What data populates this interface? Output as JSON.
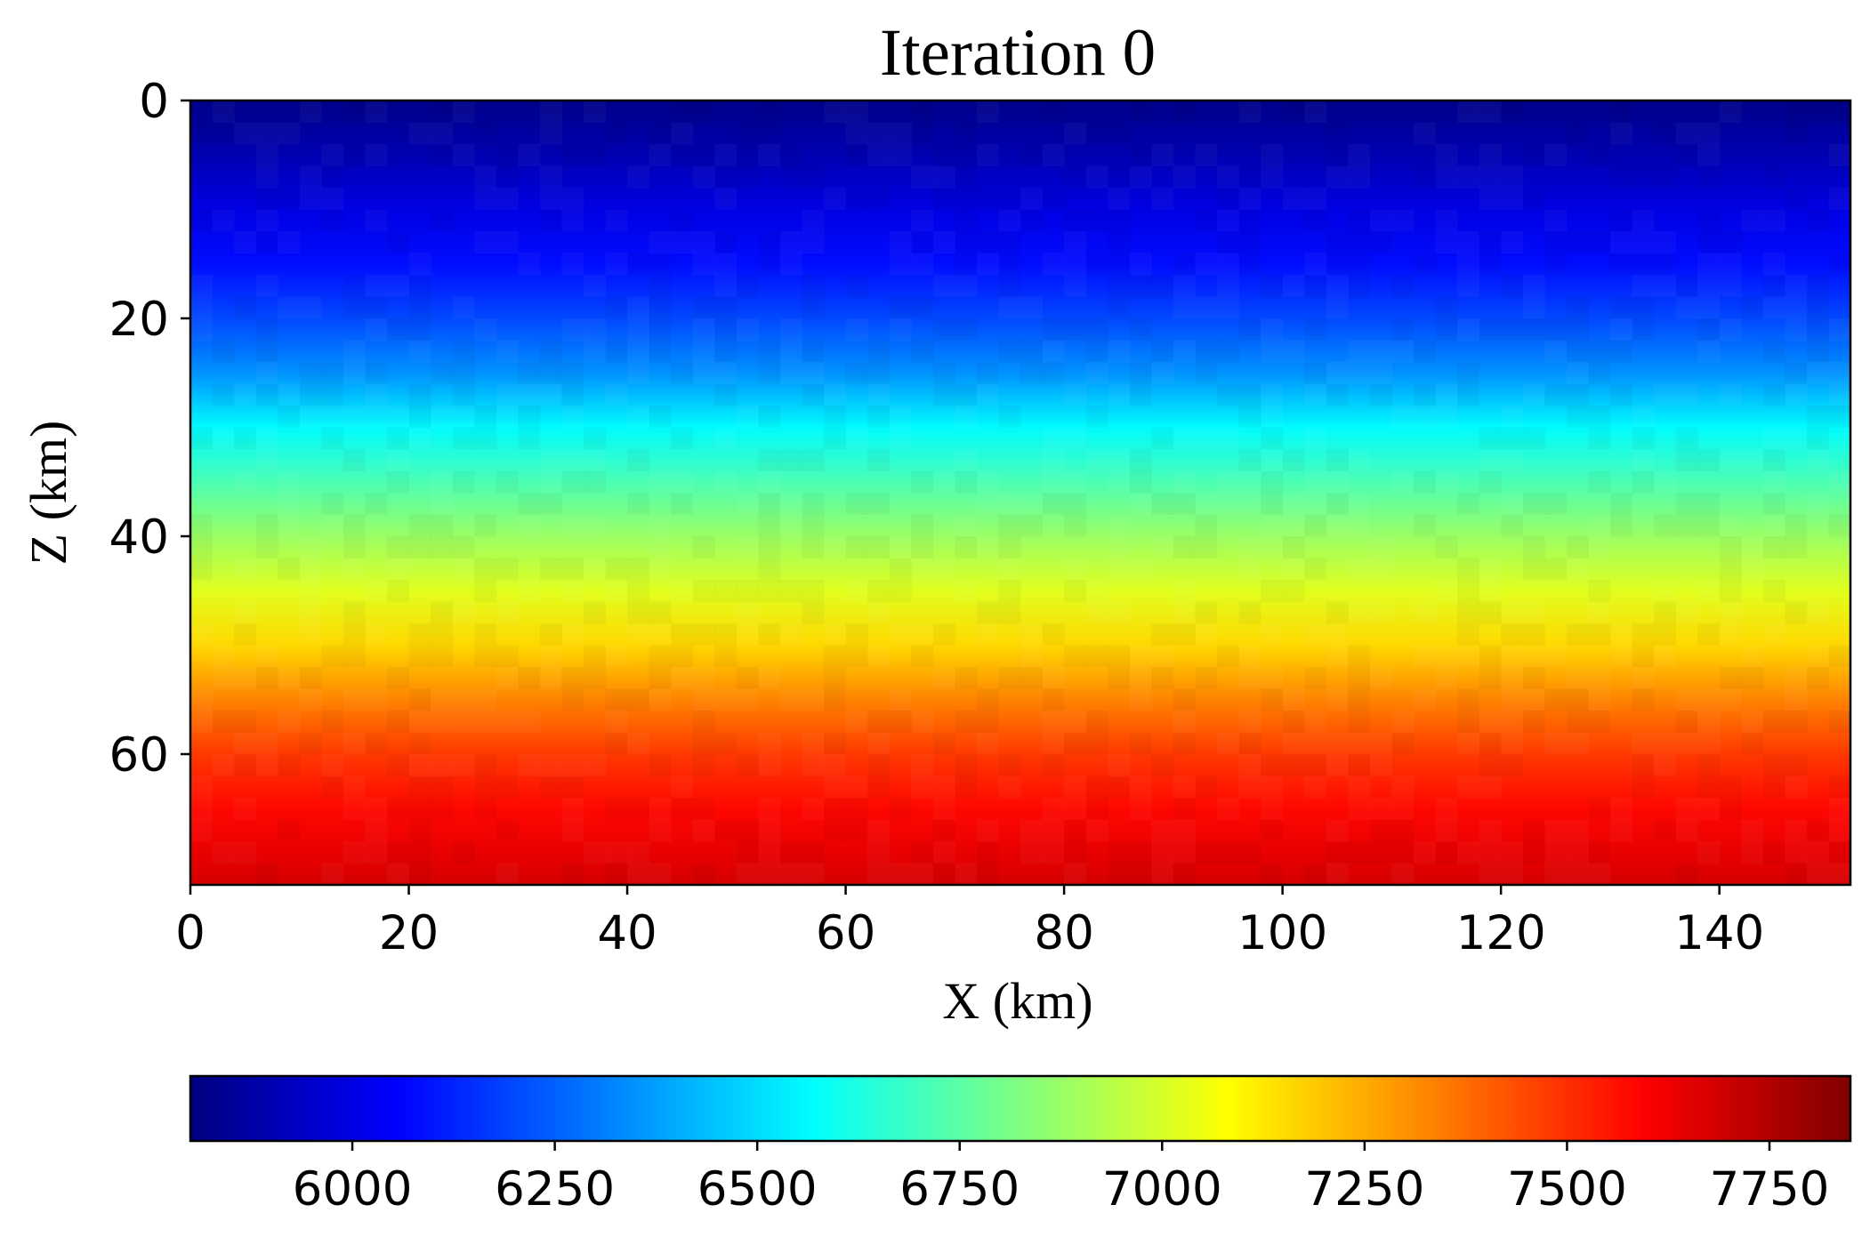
{
  "chart_data": [
    {
      "type": "heatmap",
      "title": "Iteration 0",
      "xlabel": "X (km)",
      "ylabel": "Z (km)",
      "xlim": [
        0,
        152
      ],
      "ylim": [
        72,
        0
      ],
      "y_inverted": true,
      "xticks": [
        0,
        20,
        40,
        60,
        80,
        100,
        120,
        140
      ],
      "yticks": [
        0,
        20,
        40,
        60
      ],
      "colormap": "jet",
      "value_range": [
        5800,
        7850
      ],
      "depth_profile": {
        "z": [
          0,
          5,
          10,
          15,
          20,
          25,
          30,
          35,
          40,
          45,
          50,
          55,
          60,
          65,
          70,
          72
        ],
        "value": [
          5820,
          5900,
          6000,
          6080,
          6200,
          6350,
          6560,
          6720,
          6880,
          7020,
          7160,
          7330,
          7480,
          7580,
          7650,
          7680
        ]
      }
    },
    {
      "type": "colorbar",
      "orientation": "horizontal",
      "range": [
        5800,
        7850
      ],
      "ticks": [
        6000,
        6250,
        6500,
        6750,
        7000,
        7250,
        7500,
        7750
      ],
      "colormap": "jet"
    }
  ]
}
